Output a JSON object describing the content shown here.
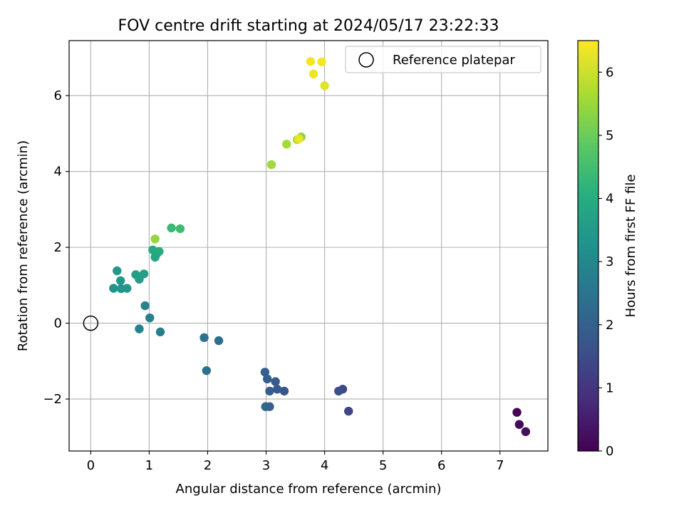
{
  "chart_data": {
    "type": "scatter",
    "title": "FOV centre drift starting at 2024/05/17 23:22:33",
    "xlabel": "Angular distance from reference (arcmin)",
    "ylabel": "Rotation from reference (arcmin)",
    "xlim": [
      -0.37,
      7.82
    ],
    "ylim": [
      -3.37,
      7.45
    ],
    "xticks": [
      0,
      1,
      2,
      3,
      4,
      5,
      6,
      7
    ],
    "xtick_labels": [
      "0",
      "1",
      "2",
      "3",
      "4",
      "5",
      "6",
      "7"
    ],
    "yticks": [
      -2,
      0,
      2,
      4,
      6
    ],
    "ytick_labels": [
      "−2",
      "0",
      "2",
      "4",
      "6"
    ],
    "grid": true,
    "colormap": "viridis",
    "colorbar": {
      "label": "Hours from first FF file",
      "range": [
        0,
        6.5
      ],
      "ticks": [
        0,
        1,
        2,
        3,
        4,
        5,
        6
      ],
      "tick_labels": [
        "0",
        "1",
        "2",
        "3",
        "4",
        "5",
        "6"
      ]
    },
    "legend": {
      "position": "top-right",
      "entries": [
        {
          "label": "Reference platepar",
          "marker": "open-circle"
        }
      ]
    },
    "reference_point": {
      "x": 0,
      "y": 0
    },
    "points": [
      {
        "x": 7.29,
        "y": -2.35,
        "h": 0.05
      },
      {
        "x": 7.33,
        "y": -2.67,
        "h": 0.15
      },
      {
        "x": 7.44,
        "y": -2.86,
        "h": 0.25
      },
      {
        "x": 4.41,
        "y": -2.32,
        "h": 1.35
      },
      {
        "x": 4.31,
        "y": -1.74,
        "h": 1.45
      },
      {
        "x": 4.24,
        "y": -1.79,
        "h": 1.55
      },
      {
        "x": 3.31,
        "y": -1.79,
        "h": 1.7
      },
      {
        "x": 3.19,
        "y": -1.74,
        "h": 1.8
      },
      {
        "x": 3.16,
        "y": -1.54,
        "h": 1.85
      },
      {
        "x": 3.06,
        "y": -1.79,
        "h": 1.9
      },
      {
        "x": 3.02,
        "y": -1.47,
        "h": 1.95
      },
      {
        "x": 2.98,
        "y": -1.29,
        "h": 2.0
      },
      {
        "x": 3.06,
        "y": -2.2,
        "h": 2.05
      },
      {
        "x": 2.99,
        "y": -2.2,
        "h": 2.1
      },
      {
        "x": 2.19,
        "y": -0.46,
        "h": 2.35
      },
      {
        "x": 1.94,
        "y": -0.38,
        "h": 2.4
      },
      {
        "x": 1.98,
        "y": -1.25,
        "h": 2.45
      },
      {
        "x": 1.19,
        "y": -0.23,
        "h": 2.75
      },
      {
        "x": 0.83,
        "y": -0.15,
        "h": 2.85
      },
      {
        "x": 1.01,
        "y": 0.14,
        "h": 2.8
      },
      {
        "x": 0.93,
        "y": 0.46,
        "h": 2.9
      },
      {
        "x": 0.39,
        "y": 0.92,
        "h": 3.3
      },
      {
        "x": 0.52,
        "y": 0.91,
        "h": 3.35
      },
      {
        "x": 0.62,
        "y": 0.92,
        "h": 3.4
      },
      {
        "x": 0.51,
        "y": 1.12,
        "h": 3.45
      },
      {
        "x": 0.45,
        "y": 1.38,
        "h": 3.5
      },
      {
        "x": 0.83,
        "y": 1.16,
        "h": 3.55
      },
      {
        "x": 0.77,
        "y": 1.28,
        "h": 3.6
      },
      {
        "x": 0.91,
        "y": 1.3,
        "h": 3.65
      },
      {
        "x": 1.1,
        "y": 1.74,
        "h": 3.8
      },
      {
        "x": 1.13,
        "y": 1.83,
        "h": 3.85
      },
      {
        "x": 1.06,
        "y": 1.93,
        "h": 3.9
      },
      {
        "x": 1.17,
        "y": 1.89,
        "h": 3.95
      },
      {
        "x": 1.38,
        "y": 2.51,
        "h": 4.35
      },
      {
        "x": 1.53,
        "y": 2.49,
        "h": 4.45
      },
      {
        "x": 1.1,
        "y": 2.22,
        "h": 5.45
      },
      {
        "x": 3.09,
        "y": 4.18,
        "h": 5.55
      },
      {
        "x": 3.35,
        "y": 4.72,
        "h": 5.6
      },
      {
        "x": 3.6,
        "y": 4.91,
        "h": 5.4
      },
      {
        "x": 3.53,
        "y": 4.84,
        "h": 5.7
      },
      {
        "x": 3.56,
        "y": 4.86,
        "h": 6.3
      },
      {
        "x": 3.76,
        "y": 6.9,
        "h": 6.4
      },
      {
        "x": 3.95,
        "y": 6.89,
        "h": 6.45
      },
      {
        "x": 3.81,
        "y": 6.57,
        "h": 6.35
      },
      {
        "x": 4.0,
        "y": 6.26,
        "h": 6.2
      }
    ]
  }
}
